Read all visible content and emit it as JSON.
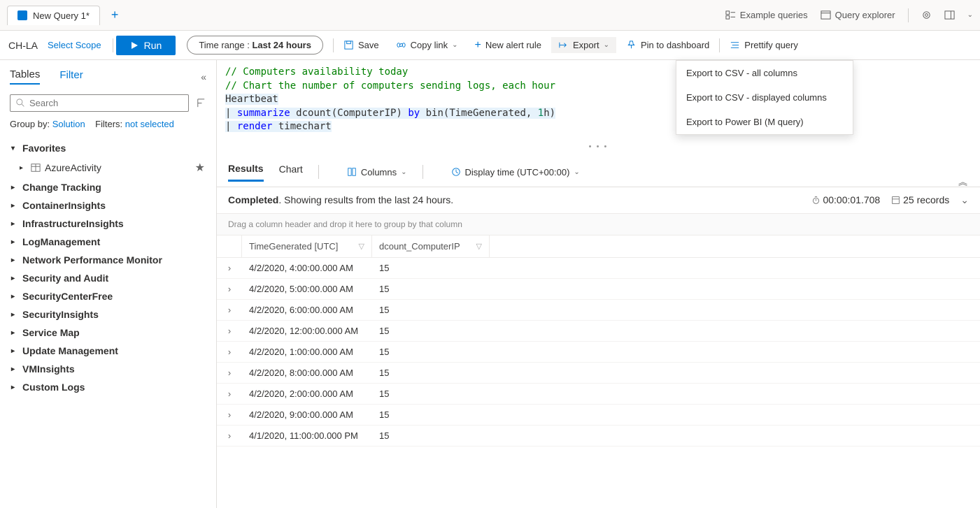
{
  "tab": {
    "title": "New Query 1*"
  },
  "topRight": {
    "exampleQueries": "Example queries",
    "queryExplorer": "Query explorer"
  },
  "toolbar": {
    "scope": "CH-LA",
    "selectScope": "Select Scope",
    "run": "Run",
    "timeRangeLabel": "Time range :",
    "timeRangeValue": "Last 24 hours",
    "save": "Save",
    "copyLink": "Copy link",
    "newAlertRule": "New alert rule",
    "export": "Export",
    "pinToDashboard": "Pin to dashboard",
    "prettify": "Prettify query"
  },
  "exportMenu": {
    "items": [
      "Export to CSV - all columns",
      "Export to CSV - displayed columns",
      "Export to Power BI (M query)"
    ]
  },
  "sidebar": {
    "tabs": {
      "tables": "Tables",
      "filter": "Filter"
    },
    "searchPlaceholder": "Search",
    "groupBy": {
      "label": "Group by:",
      "value": "Solution",
      "filtersLabel": "Filters:",
      "filtersValue": "not selected"
    },
    "favoritesLabel": "Favorites",
    "favoriteItem": "AzureActivity",
    "categories": [
      "Change Tracking",
      "ContainerInsights",
      "InfrastructureInsights",
      "LogManagement",
      "Network Performance Monitor",
      "Security and Audit",
      "SecurityCenterFree",
      "SecurityInsights",
      "Service Map",
      "Update Management",
      "VMInsights",
      "Custom Logs"
    ]
  },
  "editor": {
    "line1": "// Computers availability today",
    "line2": "// Chart the number of computers sending logs, each hour",
    "line3": "Heartbeat",
    "l4_pipe": "|",
    "l4_kw": "summarize",
    "l4_mid": " dcount(ComputerIP) ",
    "l4_kw2": "by",
    "l4_mid2": " bin(TimeGenerated, ",
    "l4_num": "1",
    "l4_end": "h)",
    "l5_pipe": "|",
    "l5_kw": "render",
    "l5_end": " timechart"
  },
  "results": {
    "tabs": {
      "results": "Results",
      "chart": "Chart"
    },
    "columnsBtn": "Columns",
    "displayTime": "Display time (UTC+00:00)",
    "completedBold": "Completed",
    "completedRest": ". Showing results from the last 24 hours.",
    "duration": "00:00:01.708",
    "recordCount": "25 records",
    "groupHint": "Drag a column header and drop it here to group by that column",
    "columns": [
      "TimeGenerated [UTC]",
      "dcount_ComputerIP"
    ],
    "rows": [
      {
        "time": "4/2/2020, 4:00:00.000 AM",
        "count": "15"
      },
      {
        "time": "4/2/2020, 5:00:00.000 AM",
        "count": "15"
      },
      {
        "time": "4/2/2020, 6:00:00.000 AM",
        "count": "15"
      },
      {
        "time": "4/2/2020, 12:00:00.000 AM",
        "count": "15"
      },
      {
        "time": "4/2/2020, 1:00:00.000 AM",
        "count": "15"
      },
      {
        "time": "4/2/2020, 8:00:00.000 AM",
        "count": "15"
      },
      {
        "time": "4/2/2020, 2:00:00.000 AM",
        "count": "15"
      },
      {
        "time": "4/2/2020, 9:00:00.000 AM",
        "count": "15"
      },
      {
        "time": "4/1/2020, 11:00:00.000 PM",
        "count": "15"
      }
    ]
  }
}
